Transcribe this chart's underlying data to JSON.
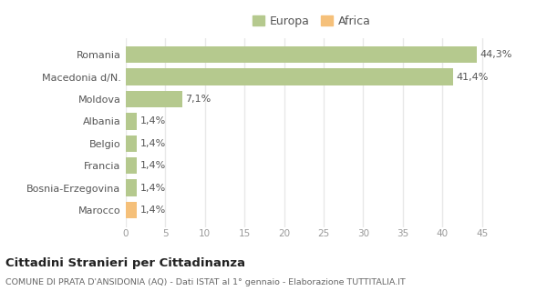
{
  "categories": [
    "Marocco",
    "Bosnia-Erzegovina",
    "Francia",
    "Belgio",
    "Albania",
    "Moldova",
    "Macedonia d/N.",
    "Romania"
  ],
  "values": [
    1.4,
    1.4,
    1.4,
    1.4,
    1.4,
    7.1,
    41.4,
    44.3
  ],
  "labels": [
    "1,4%",
    "1,4%",
    "1,4%",
    "1,4%",
    "1,4%",
    "7,1%",
    "41,4%",
    "44,3%"
  ],
  "colors": [
    "#f5c07a",
    "#b5c98e",
    "#b5c98e",
    "#b5c98e",
    "#b5c98e",
    "#b5c98e",
    "#b5c98e",
    "#b5c98e"
  ],
  "legend_labels": [
    "Europa",
    "Africa"
  ],
  "legend_colors": [
    "#b5c98e",
    "#f5c07a"
  ],
  "title": "Cittadini Stranieri per Cittadinanza",
  "subtitle": "COMUNE DI PRATA D'ANSIDONIA (AQ) - Dati ISTAT al 1° gennaio - Elaborazione TUTTITALIA.IT",
  "xlim": [
    0,
    47
  ],
  "xticks": [
    0,
    5,
    10,
    15,
    20,
    25,
    30,
    35,
    40,
    45
  ],
  "background_color": "#ffffff",
  "bar_background": "#ffffff",
  "grid_color": "#e8e8e8"
}
